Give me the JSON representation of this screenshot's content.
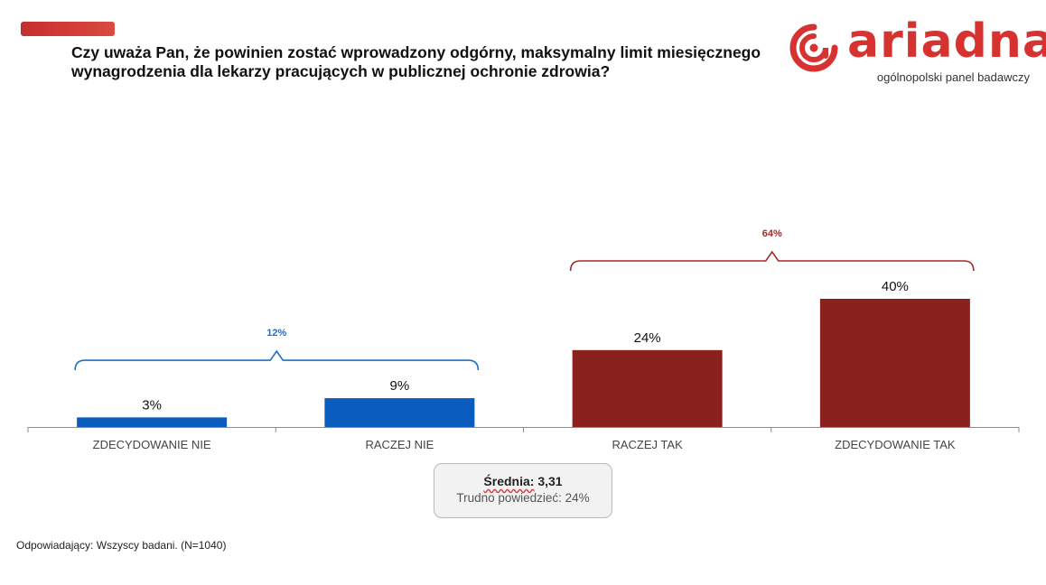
{
  "header": {
    "title": "Czy uważa Pan, że powinien zostać wprowadzony odgórny, maksymalny limit miesięcznego wynagrodzenia dla lekarzy pracujących w publicznej ochronie zdrowia?",
    "accent_color": "#c62f2f"
  },
  "logo": {
    "word": "ariadna",
    "subtitle": "ogólnopolski panel badawczy",
    "icon": "ariadna-spiral-icon",
    "color": "#d63230"
  },
  "chart_data": {
    "type": "bar",
    "categories": [
      "ZDECYDOWANIE NIE",
      "RACZEJ NIE",
      "RACZEJ TAK",
      "ZDECYDOWANIE TAK"
    ],
    "values": [
      3,
      9,
      24,
      40
    ],
    "value_labels": [
      "3%",
      "9%",
      "24%",
      "40%"
    ],
    "colors": [
      "#0a5cbe",
      "#0a5cbe",
      "#8b211d",
      "#8b211d"
    ],
    "ylim": [
      0,
      40
    ],
    "grid": false,
    "groups": [
      {
        "label": "12%",
        "categories": [
          0,
          1
        ],
        "color": "#1f6fc5"
      },
      {
        "label": "64%",
        "categories": [
          2,
          3
        ],
        "color": "#a32a28"
      }
    ]
  },
  "summary": {
    "mean_label": "Średnia:",
    "mean_value": "3,31",
    "dont_know": "Trudno powiedzieć: 24%"
  },
  "footnote": "Odpowiadający: Wszyscy badani. (N=1040)"
}
